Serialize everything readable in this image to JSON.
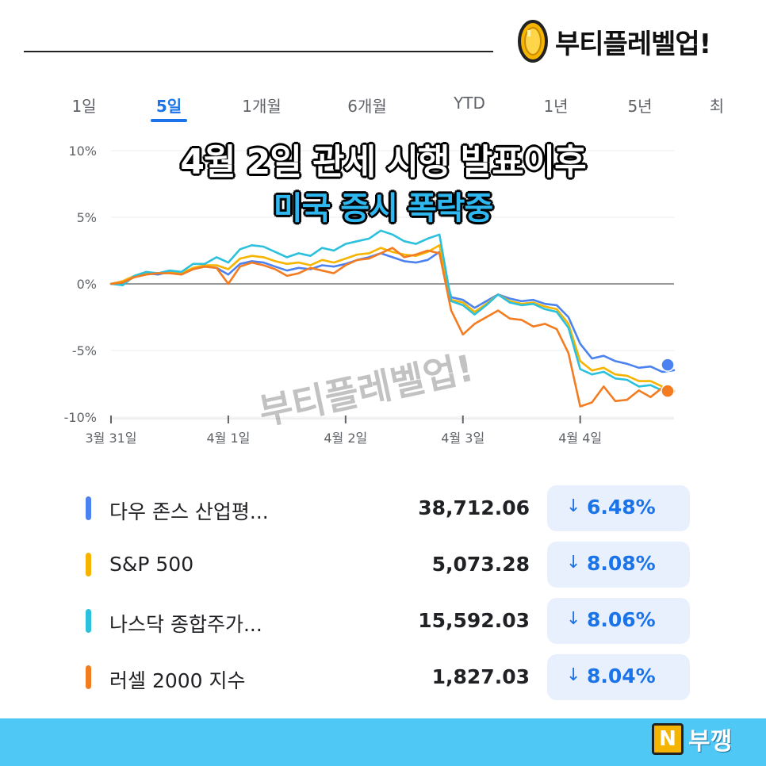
{
  "brand": {
    "text": "부티플레벨업!"
  },
  "tabs": [
    {
      "label": "1일",
      "active": false
    },
    {
      "label": "5일",
      "active": true
    },
    {
      "label": "1개월",
      "active": false
    },
    {
      "label": "6개월",
      "active": false
    },
    {
      "label": "YTD",
      "active": false
    },
    {
      "label": "1년",
      "active": false
    },
    {
      "label": "5년",
      "active": false
    },
    {
      "label": "최",
      "active": false
    }
  ],
  "headline": {
    "line1": "4월 2일 관세 시행 발표이후",
    "line2": "미국 증시 폭락중"
  },
  "watermark": "부티플레벨업!",
  "colors": {
    "blue": "#4c82f0",
    "yellow": "#f6b400",
    "teal": "#2bc0dc",
    "orange": "#f47c20",
    "accent": "#1a73e8"
  },
  "chart_data": {
    "type": "line",
    "y_ticks": [
      "10%",
      "5%",
      "0%",
      "-5%",
      "-10%"
    ],
    "y_tick_values": [
      10,
      5,
      0,
      -5,
      -10
    ],
    "ylim": [
      -10,
      10
    ],
    "x_tick_labels": [
      "3월 31일",
      "4월 1일",
      "4월 2일",
      "4월 3일",
      "4월 4일"
    ],
    "x_tick_values": [
      0,
      1,
      2,
      3,
      4
    ],
    "xlim": [
      0,
      4.8
    ],
    "baseline": 0,
    "series": [
      {
        "name": "다우 존스 산업평...",
        "color": "#4c82f0",
        "x": [
          0,
          0.1,
          0.2,
          0.3,
          0.4,
          0.5,
          0.6,
          0.7,
          0.8,
          0.9,
          1.0,
          1.1,
          1.2,
          1.3,
          1.4,
          1.5,
          1.6,
          1.7,
          1.8,
          1.9,
          2.0,
          2.1,
          2.2,
          2.3,
          2.4,
          2.5,
          2.6,
          2.7,
          2.8,
          2.9,
          3.0,
          3.1,
          3.2,
          3.3,
          3.4,
          3.5,
          3.6,
          3.7,
          3.8,
          3.9,
          4.0,
          4.1,
          4.2,
          4.3,
          4.4,
          4.5,
          4.6,
          4.7,
          4.8
        ],
        "y": [
          0,
          0.2,
          0.6,
          0.8,
          0.7,
          0.9,
          0.7,
          1.1,
          1.3,
          1.2,
          0.7,
          1.5,
          1.7,
          1.6,
          1.3,
          1.0,
          1.2,
          1.1,
          1.4,
          1.3,
          1.5,
          1.8,
          2.0,
          2.3,
          2.0,
          1.7,
          1.6,
          1.8,
          2.4,
          -1.0,
          -1.2,
          -1.8,
          -1.3,
          -0.8,
          -1.1,
          -1.3,
          -1.2,
          -1.5,
          -1.6,
          -2.5,
          -4.5,
          -5.6,
          -5.4,
          -5.8,
          -6.0,
          -6.3,
          -6.2,
          -6.6,
          -6.48
        ]
      },
      {
        "name": "S&P 500",
        "color": "#f6b400",
        "x": [
          0,
          0.1,
          0.2,
          0.3,
          0.4,
          0.5,
          0.6,
          0.7,
          0.8,
          0.9,
          1.0,
          1.1,
          1.2,
          1.3,
          1.4,
          1.5,
          1.6,
          1.7,
          1.8,
          1.9,
          2.0,
          2.1,
          2.2,
          2.3,
          2.4,
          2.5,
          2.6,
          2.7,
          2.8,
          2.9,
          3.0,
          3.1,
          3.2,
          3.3,
          3.4,
          3.5,
          3.6,
          3.7,
          3.8,
          3.9,
          4.0,
          4.1,
          4.2,
          4.3,
          4.4,
          4.5,
          4.6,
          4.7,
          4.8
        ],
        "y": [
          0,
          0.2,
          0.6,
          0.8,
          0.8,
          0.9,
          0.8,
          1.2,
          1.4,
          1.4,
          1.1,
          1.9,
          2.1,
          2.0,
          1.7,
          1.5,
          1.6,
          1.4,
          1.8,
          1.6,
          1.9,
          2.2,
          2.3,
          2.7,
          2.4,
          2.2,
          2.1,
          2.4,
          2.9,
          -1.2,
          -1.4,
          -2.1,
          -1.5,
          -0.8,
          -1.3,
          -1.5,
          -1.4,
          -1.7,
          -1.9,
          -3.0,
          -5.8,
          -6.5,
          -6.3,
          -6.8,
          -6.9,
          -7.3,
          -7.3,
          -7.7,
          -8.08
        ]
      },
      {
        "name": "나스닥 종합주가...",
        "color": "#2bc0dc",
        "x": [
          0,
          0.1,
          0.2,
          0.3,
          0.4,
          0.5,
          0.6,
          0.7,
          0.8,
          0.9,
          1.0,
          1.1,
          1.2,
          1.3,
          1.4,
          1.5,
          1.6,
          1.7,
          1.8,
          1.9,
          2.0,
          2.1,
          2.2,
          2.3,
          2.4,
          2.5,
          2.6,
          2.7,
          2.8,
          2.9,
          3.0,
          3.1,
          3.2,
          3.3,
          3.4,
          3.5,
          3.6,
          3.7,
          3.8,
          3.9,
          4.0,
          4.1,
          4.2,
          4.3,
          4.4,
          4.5,
          4.6,
          4.7,
          4.8
        ],
        "y": [
          0,
          -0.1,
          0.6,
          0.9,
          0.8,
          1.0,
          0.9,
          1.5,
          1.5,
          2.0,
          1.6,
          2.6,
          2.9,
          2.8,
          2.4,
          2.0,
          2.3,
          2.1,
          2.7,
          2.5,
          3.0,
          3.2,
          3.4,
          4.0,
          3.7,
          3.2,
          3.0,
          3.4,
          3.7,
          -1.3,
          -1.6,
          -2.3,
          -1.6,
          -0.8,
          -1.4,
          -1.6,
          -1.5,
          -1.9,
          -2.1,
          -3.3,
          -6.4,
          -6.8,
          -6.6,
          -7.1,
          -7.2,
          -7.7,
          -7.6,
          -8.0,
          -8.06
        ]
      },
      {
        "name": "러셀 2000 지수",
        "color": "#f47c20",
        "x": [
          0,
          0.1,
          0.2,
          0.3,
          0.4,
          0.5,
          0.6,
          0.7,
          0.8,
          0.9,
          1.0,
          1.1,
          1.2,
          1.3,
          1.4,
          1.5,
          1.6,
          1.7,
          1.8,
          1.9,
          2.0,
          2.1,
          2.2,
          2.3,
          2.4,
          2.5,
          2.6,
          2.7,
          2.8,
          2.9,
          3.0,
          3.1,
          3.2,
          3.3,
          3.4,
          3.5,
          3.6,
          3.7,
          3.8,
          3.9,
          4.0,
          4.1,
          4.2,
          4.3,
          4.4,
          4.5,
          4.6,
          4.7,
          4.8
        ],
        "y": [
          0,
          0.1,
          0.5,
          0.7,
          0.8,
          0.8,
          0.7,
          1.1,
          1.3,
          1.2,
          0.0,
          1.3,
          1.6,
          1.4,
          1.1,
          0.6,
          0.8,
          1.2,
          1.0,
          0.8,
          1.4,
          1.8,
          1.9,
          2.3,
          2.7,
          2.0,
          2.2,
          2.5,
          2.3,
          -2.0,
          -3.8,
          -3.0,
          -2.5,
          -2.0,
          -2.6,
          -2.7,
          -3.2,
          -3.0,
          -3.4,
          -5.2,
          -9.2,
          -8.9,
          -7.7,
          -8.8,
          -8.7,
          -8.0,
          -8.5,
          -7.8,
          -8.04
        ]
      }
    ]
  },
  "list": [
    {
      "name": "다우 존스 산업평...",
      "value": "38,712.06",
      "change": "6.48%",
      "color": "#4c82f0"
    },
    {
      "name": "S&P 500",
      "value": "5,073.28",
      "change": "8.08%",
      "color": "#f6b400"
    },
    {
      "name": "나스닥 종합주가...",
      "value": "15,592.03",
      "change": "8.06%",
      "color": "#2bc0dc"
    },
    {
      "name": "러셀 2000 지수",
      "value": "1,827.03",
      "change": "8.04%",
      "color": "#f47c20"
    }
  ],
  "change_arrow": "↓",
  "footer": {
    "badge": "N",
    "text": "부깽"
  }
}
